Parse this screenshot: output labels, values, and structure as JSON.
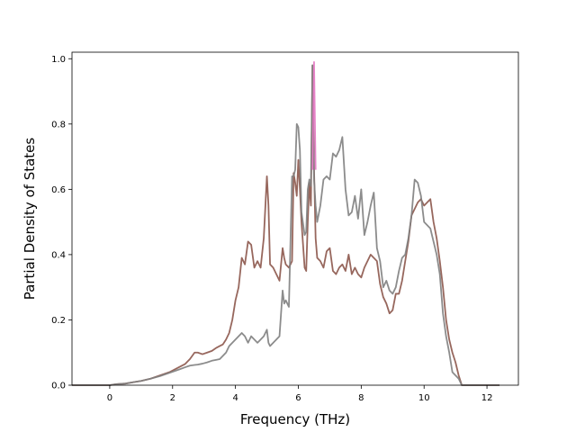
{
  "chart_data": {
    "type": "line",
    "xlabel": "Frequency (THz)",
    "ylabel": "Partial Density of States",
    "xlim": [
      -1.2,
      13.0
    ],
    "ylim": [
      0.0,
      1.02
    ],
    "xticks": [
      0,
      2,
      4,
      6,
      8,
      10,
      12
    ],
    "yticks": [
      0.0,
      0.2,
      0.4,
      0.6,
      0.8,
      1.0
    ],
    "grid": false,
    "legend": "none",
    "series": [
      {
        "color": "#8c564b",
        "x": [
          -1.2,
          -0.6,
          0.0,
          0.2,
          0.5,
          0.8,
          1.0,
          1.3,
          1.6,
          1.9,
          2.2,
          2.4,
          2.55,
          2.7,
          2.8,
          2.95,
          3.1,
          3.25,
          3.4,
          3.5,
          3.6,
          3.7,
          3.8,
          3.9,
          4.0,
          4.1,
          4.2,
          4.3,
          4.4,
          4.5,
          4.6,
          4.7,
          4.8,
          4.9,
          5.0,
          5.05,
          5.1,
          5.2,
          5.3,
          5.4,
          5.5,
          5.55,
          5.6,
          5.7,
          5.8,
          5.85,
          5.9,
          5.95,
          6.0,
          6.05,
          6.1,
          6.2,
          6.25,
          6.3,
          6.35,
          6.4,
          6.45,
          6.5,
          6.55,
          6.6,
          6.7,
          6.8,
          6.9,
          7.0,
          7.1,
          7.2,
          7.3,
          7.4,
          7.5,
          7.6,
          7.7,
          7.8,
          7.9,
          8.0,
          8.1,
          8.2,
          8.3,
          8.4,
          8.5,
          8.6,
          8.7,
          8.8,
          8.9,
          9.0,
          9.1,
          9.2,
          9.3,
          9.4,
          9.5,
          9.6,
          9.7,
          9.8,
          9.9,
          10.0,
          10.1,
          10.2,
          10.3,
          10.4,
          10.5,
          10.6,
          10.7,
          10.8,
          10.9,
          11.0,
          11.1,
          11.2,
          11.3,
          11.5,
          12.0,
          12.4
        ],
        "y": [
          0.0,
          0.0,
          0.0,
          0.003,
          0.005,
          0.01,
          0.013,
          0.02,
          0.03,
          0.04,
          0.055,
          0.065,
          0.08,
          0.1,
          0.1,
          0.095,
          0.1,
          0.105,
          0.115,
          0.12,
          0.125,
          0.14,
          0.16,
          0.2,
          0.26,
          0.3,
          0.39,
          0.37,
          0.44,
          0.43,
          0.36,
          0.38,
          0.36,
          0.45,
          0.64,
          0.55,
          0.37,
          0.36,
          0.34,
          0.32,
          0.42,
          0.39,
          0.37,
          0.36,
          0.38,
          0.65,
          0.62,
          0.58,
          0.69,
          0.6,
          0.5,
          0.36,
          0.35,
          0.5,
          0.62,
          0.55,
          0.98,
          0.66,
          0.45,
          0.39,
          0.38,
          0.36,
          0.41,
          0.42,
          0.35,
          0.34,
          0.36,
          0.37,
          0.35,
          0.4,
          0.34,
          0.36,
          0.34,
          0.33,
          0.36,
          0.38,
          0.4,
          0.39,
          0.38,
          0.31,
          0.27,
          0.25,
          0.22,
          0.23,
          0.28,
          0.28,
          0.32,
          0.38,
          0.44,
          0.52,
          0.54,
          0.56,
          0.57,
          0.55,
          0.56,
          0.57,
          0.5,
          0.45,
          0.38,
          0.3,
          0.2,
          0.14,
          0.1,
          0.07,
          0.03,
          0.0,
          0.0,
          0.0,
          0.0,
          0.0
        ]
      },
      {
        "color": "#7f7f7f",
        "x": [
          -1.2,
          -0.6,
          0.0,
          0.2,
          0.5,
          0.8,
          1.0,
          1.3,
          1.6,
          1.9,
          2.2,
          2.4,
          2.55,
          2.7,
          2.8,
          2.95,
          3.1,
          3.25,
          3.4,
          3.5,
          3.6,
          3.7,
          3.8,
          3.9,
          4.0,
          4.1,
          4.2,
          4.3,
          4.4,
          4.5,
          4.6,
          4.7,
          4.8,
          4.9,
          5.0,
          5.05,
          5.1,
          5.2,
          5.3,
          5.4,
          5.5,
          5.55,
          5.6,
          5.7,
          5.8,
          5.85,
          5.9,
          5.95,
          6.0,
          6.05,
          6.1,
          6.2,
          6.25,
          6.3,
          6.35,
          6.4,
          6.45,
          6.5,
          6.55,
          6.6,
          6.7,
          6.8,
          6.9,
          7.0,
          7.1,
          7.2,
          7.3,
          7.4,
          7.5,
          7.6,
          7.7,
          7.8,
          7.9,
          8.0,
          8.1,
          8.2,
          8.3,
          8.4,
          8.5,
          8.6,
          8.7,
          8.8,
          8.9,
          9.0,
          9.1,
          9.2,
          9.3,
          9.4,
          9.5,
          9.6,
          9.7,
          9.8,
          9.9,
          10.0,
          10.1,
          10.2,
          10.3,
          10.4,
          10.5,
          10.6,
          10.7,
          10.8,
          10.9,
          11.0,
          11.1,
          11.2,
          11.3,
          11.5,
          12.0,
          12.4
        ],
        "y": [
          0.0,
          0.0,
          0.0,
          0.003,
          0.005,
          0.01,
          0.013,
          0.02,
          0.028,
          0.038,
          0.048,
          0.055,
          0.06,
          0.062,
          0.063,
          0.066,
          0.07,
          0.075,
          0.078,
          0.08,
          0.09,
          0.1,
          0.12,
          0.13,
          0.14,
          0.15,
          0.16,
          0.15,
          0.13,
          0.15,
          0.14,
          0.13,
          0.14,
          0.15,
          0.17,
          0.13,
          0.12,
          0.13,
          0.14,
          0.15,
          0.29,
          0.25,
          0.26,
          0.24,
          0.64,
          0.64,
          0.66,
          0.8,
          0.79,
          0.72,
          0.53,
          0.46,
          0.47,
          0.6,
          0.63,
          0.61,
          0.98,
          0.63,
          0.55,
          0.5,
          0.55,
          0.63,
          0.64,
          0.63,
          0.71,
          0.7,
          0.72,
          0.76,
          0.6,
          0.52,
          0.53,
          0.58,
          0.51,
          0.6,
          0.46,
          0.5,
          0.55,
          0.59,
          0.42,
          0.38,
          0.3,
          0.32,
          0.29,
          0.28,
          0.3,
          0.35,
          0.39,
          0.4,
          0.45,
          0.52,
          0.63,
          0.62,
          0.58,
          0.5,
          0.49,
          0.48,
          0.44,
          0.4,
          0.34,
          0.22,
          0.15,
          0.1,
          0.04,
          0.03,
          0.02,
          0.0,
          0.0,
          0.0,
          0.0,
          0.0
        ]
      },
      {
        "color": "#e377c2",
        "x": [
          6.45,
          6.5,
          6.55
        ],
        "y": [
          0.66,
          0.99,
          0.66
        ]
      }
    ]
  }
}
